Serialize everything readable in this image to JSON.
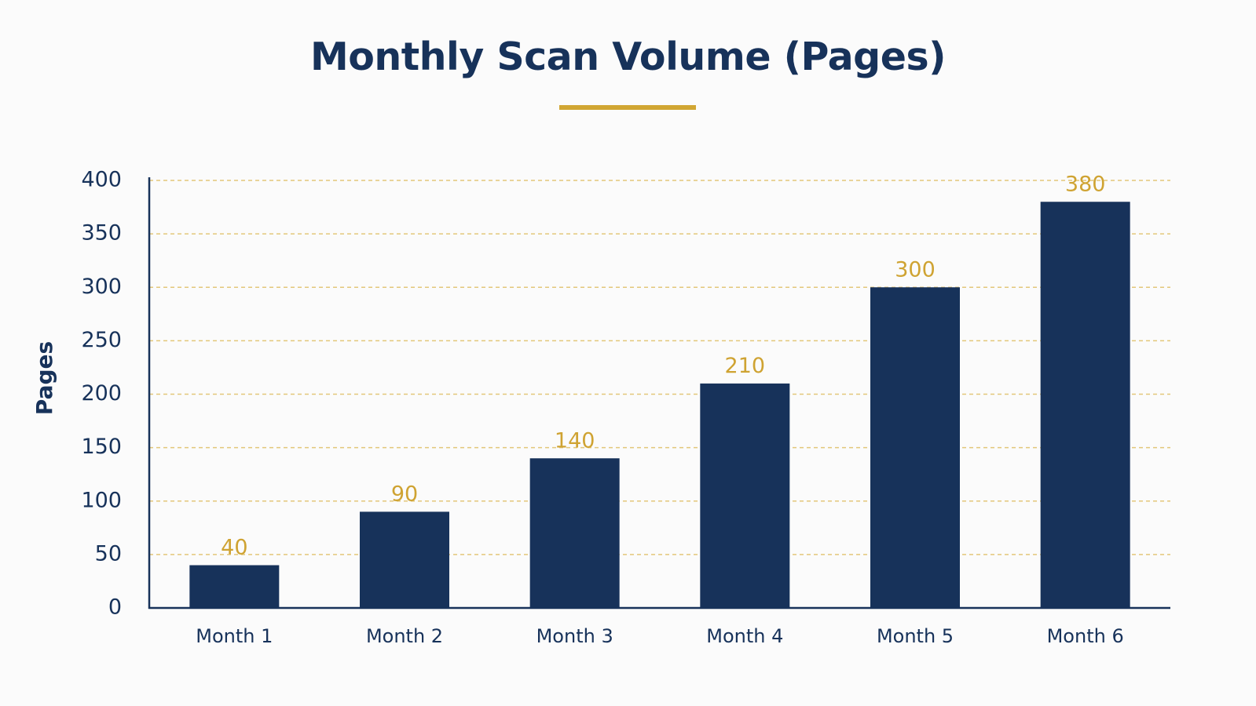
{
  "chart_data": {
    "type": "bar",
    "title": "Monthly Scan Volume (Pages)",
    "xlabel": "",
    "ylabel": "Pages",
    "categories": [
      "Month 1",
      "Month 2",
      "Month 3",
      "Month 4",
      "Month 5",
      "Month 6"
    ],
    "values": [
      40,
      90,
      140,
      210,
      300,
      380
    ],
    "data_labels": [
      "40",
      "90",
      "140",
      "210",
      "300",
      "380"
    ],
    "ylim": [
      0,
      400
    ],
    "yticks": [
      0,
      50,
      100,
      150,
      200,
      250,
      300,
      350,
      400
    ],
    "grid": true,
    "grid_style": "dashed",
    "legend": "none",
    "colors": {
      "bar": "#17325a",
      "data_label": "#cfa332",
      "grid": "#e3c77a",
      "axis": "#17325a",
      "text": "#17325a",
      "accent": "#d1a633"
    }
  }
}
